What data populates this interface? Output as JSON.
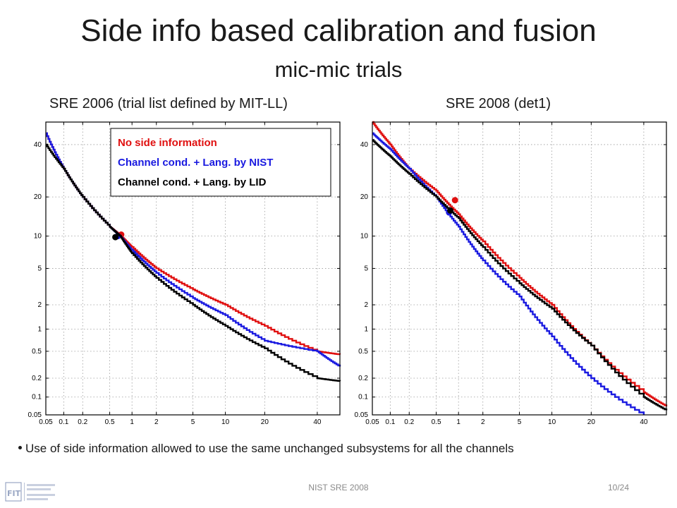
{
  "title": "Side info based calibration and fusion",
  "subtitle": "mic-mic trials",
  "bullet": "Use of side information allowed to use the same unchanged subsystems for all the channels",
  "footer": {
    "center": "NIST SRE 2008",
    "page": "10/24"
  },
  "colors": {
    "no_side": "#e01010",
    "nist": "#1a1ae0",
    "lid": "#000000"
  },
  "chart_data": [
    {
      "type": "line",
      "title": "SRE 2006 (trial list defined by MIT-LL)",
      "xlabel": "",
      "ylabel": "",
      "scale": "probit",
      "xlim": [
        0.05,
        50
      ],
      "ylim": [
        0.05,
        50
      ],
      "xticks": [
        0.05,
        0.1,
        0.2,
        0.5,
        1,
        2,
        5,
        10,
        20,
        40
      ],
      "yticks": [
        0.05,
        0.1,
        0.2,
        0.5,
        1,
        2,
        5,
        10,
        20,
        40
      ],
      "grid": true,
      "legend": {
        "position": "top-right",
        "entries": [
          "No side information",
          "Channel cond. + Lang. by NIST",
          "Channel cond. + Lang. by LID"
        ]
      },
      "series": [
        {
          "name": "No side information",
          "color": "#e01010",
          "points": [
            [
              0.05,
              45
            ],
            [
              0.1,
              30
            ],
            [
              0.2,
              20
            ],
            [
              0.5,
              12
            ],
            [
              0.7,
              10.2
            ],
            [
              1,
              8
            ],
            [
              2,
              5
            ],
            [
              5,
              3
            ],
            [
              10,
              2
            ],
            [
              20,
              1.1
            ],
            [
              40,
              0.5
            ],
            [
              50,
              0.45
            ]
          ],
          "marker": [
            0.72,
            10.3
          ]
        },
        {
          "name": "Channel cond. + Lang. by NIST",
          "color": "#1a1ae0",
          "points": [
            [
              0.05,
              45
            ],
            [
              0.1,
              30
            ],
            [
              0.2,
              20
            ],
            [
              0.5,
              12
            ],
            [
              0.7,
              10
            ],
            [
              1,
              7.5
            ],
            [
              2,
              4.5
            ],
            [
              5,
              2.4
            ],
            [
              10,
              1.5
            ],
            [
              20,
              0.7
            ],
            [
              40,
              0.5
            ],
            [
              50,
              0.3
            ]
          ],
          "marker": [
            0.65,
            10
          ]
        },
        {
          "name": "Channel cond. + Lang. by LID",
          "color": "#000000",
          "points": [
            [
              0.05,
              40
            ],
            [
              0.1,
              30
            ],
            [
              0.2,
              20
            ],
            [
              0.5,
              12
            ],
            [
              0.7,
              10
            ],
            [
              1,
              7
            ],
            [
              2,
              4
            ],
            [
              5,
              2
            ],
            [
              10,
              1.1
            ],
            [
              20,
              0.55
            ],
            [
              40,
              0.2
            ],
            [
              50,
              0.18
            ]
          ],
          "marker": [
            0.6,
            9.8
          ]
        }
      ]
    },
    {
      "type": "line",
      "title": "SRE 2008 (det1)",
      "xlabel": "",
      "ylabel": "",
      "scale": "probit",
      "xlim": [
        0.05,
        50
      ],
      "ylim": [
        0.05,
        50
      ],
      "xticks": [
        0.05,
        0.1,
        0.2,
        0.5,
        1,
        2,
        5,
        10,
        20,
        40
      ],
      "yticks": [
        0.05,
        0.1,
        0.2,
        0.5,
        1,
        2,
        5,
        10,
        20,
        40
      ],
      "grid": true,
      "series": [
        {
          "name": "No side information",
          "color": "#e01010",
          "points": [
            [
              0.05,
              50
            ],
            [
              0.1,
              40
            ],
            [
              0.2,
              30
            ],
            [
              0.5,
              22
            ],
            [
              1,
              15
            ],
            [
              2,
              9
            ],
            [
              5,
              4
            ],
            [
              10,
              2
            ],
            [
              20,
              0.6
            ],
            [
              40,
              0.12
            ],
            [
              50,
              0.07
            ]
          ],
          "marker": [
            0.9,
            19
          ]
        },
        {
          "name": "Channel cond. + Lang. by NIST",
          "color": "#1a1ae0",
          "points": [
            [
              0.05,
              45
            ],
            [
              0.1,
              38
            ],
            [
              0.2,
              30
            ],
            [
              0.5,
              20
            ],
            [
              1,
              12
            ],
            [
              2,
              6
            ],
            [
              5,
              2.5
            ],
            [
              10,
              0.8
            ],
            [
              20,
              0.2
            ],
            [
              40,
              0.05
            ]
          ],
          "marker": [
            0.75,
            15.5
          ]
        },
        {
          "name": "Channel cond. + Lang. by LID",
          "color": "#000000",
          "points": [
            [
              0.05,
              42
            ],
            [
              0.1,
              35
            ],
            [
              0.2,
              28
            ],
            [
              0.5,
              20
            ],
            [
              1,
              14
            ],
            [
              2,
              8
            ],
            [
              5,
              3.5
            ],
            [
              10,
              1.8
            ],
            [
              20,
              0.6
            ],
            [
              40,
              0.1
            ],
            [
              50,
              0.06
            ]
          ],
          "marker": [
            0.78,
            16
          ]
        }
      ]
    }
  ]
}
